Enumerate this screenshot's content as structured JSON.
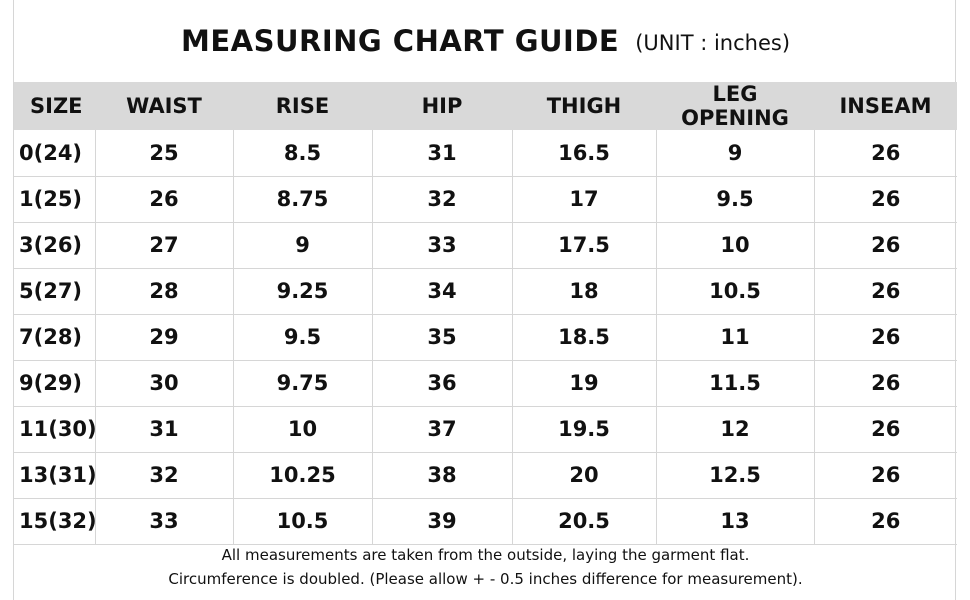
{
  "title": "MEASURING CHART GUIDE",
  "unit_label": "(UNIT : inches)",
  "columns": [
    "SIZE",
    "WAIST",
    "RISE",
    "HIP",
    "THIGH",
    "LEG OPENING",
    "INSEAM"
  ],
  "rows": [
    [
      "0(24)",
      "25",
      "8.5",
      "31",
      "16.5",
      "9",
      "26"
    ],
    [
      "1(25)",
      "26",
      "8.75",
      "32",
      "17",
      "9.5",
      "26"
    ],
    [
      "3(26)",
      "27",
      "9",
      "33",
      "17.5",
      "10",
      "26"
    ],
    [
      "5(27)",
      "28",
      "9.25",
      "34",
      "18",
      "10.5",
      "26"
    ],
    [
      "7(28)",
      "29",
      "9.5",
      "35",
      "18.5",
      "11",
      "26"
    ],
    [
      "9(29)",
      "30",
      "9.75",
      "36",
      "19",
      "11.5",
      "26"
    ],
    [
      "11(30)",
      "31",
      "10",
      "37",
      "19.5",
      "12",
      "26"
    ],
    [
      "13(31)",
      "32",
      "10.25",
      "38",
      "20",
      "12.5",
      "26"
    ],
    [
      "15(32)",
      "33",
      "10.5",
      "39",
      "20.5",
      "13",
      "26"
    ]
  ],
  "notes": [
    "All measurements are taken from the outside, laying the garment flat.",
    "Circumference is doubled. (Please allow + - 0.5 inches difference for measurement)."
  ],
  "colors": {
    "header_bg": "#d9d9d9",
    "grid_line": "#d6d6d6",
    "text": "#111111"
  }
}
